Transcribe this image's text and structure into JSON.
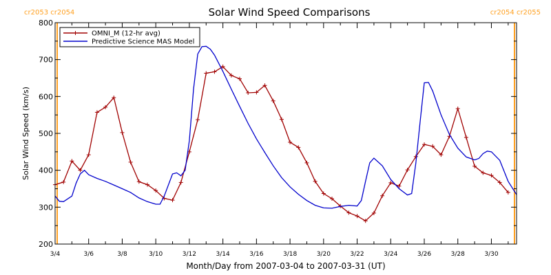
{
  "chart_data": {
    "type": "line",
    "title": "Solar Wind Speed Comparisons",
    "xlabel": "Month/Day from 2007-03-04 to 2007-03-31 (UT)",
    "ylabel": "Solar Wind Speed (km/s)",
    "xlim": [
      "2007-03-04T00:00",
      "2007-03-31T12:00"
    ],
    "ylim": [
      200,
      800
    ],
    "x_ticks": [
      "3/4",
      "3/6",
      "3/8",
      "3/10",
      "3/12",
      "3/14",
      "3/16",
      "3/18",
      "3/20",
      "3/22",
      "3/24",
      "3/26",
      "3/28",
      "3/30"
    ],
    "x_tick_dates": [
      "2007-03-04",
      "2007-03-06",
      "2007-03-08",
      "2007-03-10",
      "2007-03-12",
      "2007-03-14",
      "2007-03-16",
      "2007-03-18",
      "2007-03-20",
      "2007-03-22",
      "2007-03-24",
      "2007-03-26",
      "2007-03-28",
      "2007-03-30"
    ],
    "y_ticks": [
      200,
      300,
      400,
      500,
      600,
      700,
      800
    ],
    "grid": false,
    "legend_position": "top-left",
    "carrington_labels": {
      "left": "cr2053 cr2054",
      "right": "cr2054 cr2055",
      "boundaries": [
        "2007-03-04T00:00",
        "2007-03-31T12:00"
      ],
      "color": "#ffa020"
    },
    "series": [
      {
        "name": "OMNI_M (12-hr avg)",
        "color": "#a00000",
        "marker": "+",
        "points": [
          [
            "2007-03-04T00:00",
            361
          ],
          [
            "2007-03-04T12:00",
            368
          ],
          [
            "2007-03-05T00:00",
            425
          ],
          [
            "2007-03-05T12:00",
            400
          ],
          [
            "2007-03-06T00:00",
            442
          ],
          [
            "2007-03-06T12:00",
            557
          ],
          [
            "2007-03-07T00:00",
            571
          ],
          [
            "2007-03-07T12:00",
            597
          ],
          [
            "2007-03-08T00:00",
            502
          ],
          [
            "2007-03-08T12:00",
            422
          ],
          [
            "2007-03-09T00:00",
            369
          ],
          [
            "2007-03-09T12:00",
            361
          ],
          [
            "2007-03-10T00:00",
            345
          ],
          [
            "2007-03-10T12:00",
            324
          ],
          [
            "2007-03-11T00:00",
            319
          ],
          [
            "2007-03-11T12:00",
            367
          ],
          [
            "2007-03-12T00:00",
            450
          ],
          [
            "2007-03-12T12:00",
            537
          ],
          [
            "2007-03-13T00:00",
            663
          ],
          [
            "2007-03-13T12:00",
            667
          ],
          [
            "2007-03-14T00:00",
            681
          ],
          [
            "2007-03-14T12:00",
            657
          ],
          [
            "2007-03-15T00:00",
            648
          ],
          [
            "2007-03-15T12:00",
            610
          ],
          [
            "2007-03-16T00:00",
            611
          ],
          [
            "2007-03-16T12:00",
            630
          ],
          [
            "2007-03-17T00:00",
            588
          ],
          [
            "2007-03-17T12:00",
            538
          ],
          [
            "2007-03-18T00:00",
            476
          ],
          [
            "2007-03-18T12:00",
            462
          ],
          [
            "2007-03-19T00:00",
            420
          ],
          [
            "2007-03-19T12:00",
            370
          ],
          [
            "2007-03-20T00:00",
            337
          ],
          [
            "2007-03-20T12:00",
            323
          ],
          [
            "2007-03-21T00:00",
            303
          ],
          [
            "2007-03-21T12:00",
            285
          ],
          [
            "2007-03-22T00:00",
            276
          ],
          [
            "2007-03-22T12:00",
            263
          ],
          [
            "2007-03-23T00:00",
            284
          ],
          [
            "2007-03-23T12:00",
            331
          ],
          [
            "2007-03-24T00:00",
            366
          ],
          [
            "2007-03-24T12:00",
            357
          ],
          [
            "2007-03-25T00:00",
            401
          ],
          [
            "2007-03-25T12:00",
            437
          ],
          [
            "2007-03-26T00:00",
            470
          ],
          [
            "2007-03-26T12:00",
            465
          ],
          [
            "2007-03-27T00:00",
            442
          ],
          [
            "2007-03-27T12:00",
            492
          ],
          [
            "2007-03-28T00:00",
            567
          ],
          [
            "2007-03-28T12:00",
            489
          ],
          [
            "2007-03-29T00:00",
            411
          ],
          [
            "2007-03-29T12:00",
            393
          ],
          [
            "2007-03-30T00:00",
            386
          ],
          [
            "2007-03-30T12:00",
            367
          ],
          [
            "2007-03-31T00:00",
            340
          ]
        ]
      },
      {
        "name": "Predictive Science MAS Model",
        "color": "#0000cc",
        "marker": "",
        "points": [
          [
            "2007-03-04T00:00",
            330
          ],
          [
            "2007-03-04T06:00",
            316
          ],
          [
            "2007-03-04T12:00",
            315
          ],
          [
            "2007-03-05T00:00",
            330
          ],
          [
            "2007-03-05T06:00",
            365
          ],
          [
            "2007-03-05T12:00",
            390
          ],
          [
            "2007-03-05T18:00",
            400
          ],
          [
            "2007-03-06T00:00",
            388
          ],
          [
            "2007-03-06T12:00",
            378
          ],
          [
            "2007-03-07T00:00",
            370
          ],
          [
            "2007-03-07T12:00",
            360
          ],
          [
            "2007-03-08T00:00",
            350
          ],
          [
            "2007-03-08T12:00",
            340
          ],
          [
            "2007-03-09T00:00",
            325
          ],
          [
            "2007-03-09T12:00",
            315
          ],
          [
            "2007-03-10T00:00",
            308
          ],
          [
            "2007-03-10T06:00",
            308
          ],
          [
            "2007-03-10T12:00",
            330
          ],
          [
            "2007-03-11T00:00",
            390
          ],
          [
            "2007-03-11T06:00",
            393
          ],
          [
            "2007-03-11T12:00",
            385
          ],
          [
            "2007-03-11T18:00",
            400
          ],
          [
            "2007-03-12T00:00",
            480
          ],
          [
            "2007-03-12T06:00",
            620
          ],
          [
            "2007-03-12T12:00",
            715
          ],
          [
            "2007-03-12T18:00",
            735
          ],
          [
            "2007-03-13T00:00",
            736
          ],
          [
            "2007-03-13T06:00",
            728
          ],
          [
            "2007-03-13T12:00",
            712
          ],
          [
            "2007-03-14T00:00",
            668
          ],
          [
            "2007-03-14T12:00",
            620
          ],
          [
            "2007-03-15T00:00",
            573
          ],
          [
            "2007-03-15T12:00",
            527
          ],
          [
            "2007-03-16T00:00",
            485
          ],
          [
            "2007-03-16T12:00",
            448
          ],
          [
            "2007-03-17T00:00",
            412
          ],
          [
            "2007-03-17T12:00",
            380
          ],
          [
            "2007-03-18T00:00",
            355
          ],
          [
            "2007-03-18T12:00",
            335
          ],
          [
            "2007-03-19T00:00",
            318
          ],
          [
            "2007-03-19T12:00",
            305
          ],
          [
            "2007-03-20T00:00",
            298
          ],
          [
            "2007-03-20T12:00",
            297
          ],
          [
            "2007-03-21T00:00",
            302
          ],
          [
            "2007-03-21T12:00",
            305
          ],
          [
            "2007-03-22T00:00",
            303
          ],
          [
            "2007-03-22T06:00",
            318
          ],
          [
            "2007-03-22T12:00",
            370
          ],
          [
            "2007-03-22T18:00",
            420
          ],
          [
            "2007-03-23T00:00",
            433
          ],
          [
            "2007-03-23T12:00",
            412
          ],
          [
            "2007-03-24T00:00",
            375
          ],
          [
            "2007-03-24T12:00",
            350
          ],
          [
            "2007-03-25T00:00",
            333
          ],
          [
            "2007-03-25T06:00",
            337
          ],
          [
            "2007-03-25T12:00",
            420
          ],
          [
            "2007-03-25T18:00",
            530
          ],
          [
            "2007-03-26T00:00",
            637
          ],
          [
            "2007-03-26T06:00",
            638
          ],
          [
            "2007-03-26T12:00",
            615
          ],
          [
            "2007-03-27T00:00",
            550
          ],
          [
            "2007-03-27T12:00",
            497
          ],
          [
            "2007-03-28T00:00",
            460
          ],
          [
            "2007-03-28T12:00",
            436
          ],
          [
            "2007-03-29T00:00",
            428
          ],
          [
            "2007-03-29T06:00",
            432
          ],
          [
            "2007-03-29T12:00",
            445
          ],
          [
            "2007-03-29T18:00",
            452
          ],
          [
            "2007-03-30T00:00",
            450
          ],
          [
            "2007-03-30T12:00",
            427
          ],
          [
            "2007-03-31T00:00",
            370
          ],
          [
            "2007-03-31T12:00",
            334
          ]
        ]
      }
    ]
  }
}
